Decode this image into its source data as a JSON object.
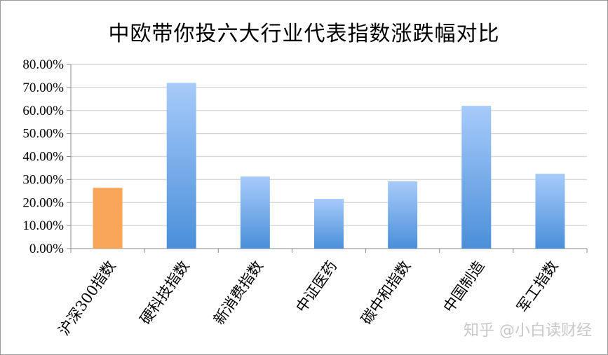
{
  "chart_data": {
    "type": "bar",
    "title": "中欧带你投六大行业代表指数涨跌幅对比",
    "categories": [
      "沪深300指数",
      "硬科技指数",
      "新消费指数",
      "中证医药",
      "碳中和指数",
      "中国制造",
      "军工指数"
    ],
    "values": [
      26.4,
      72.0,
      31.3,
      21.6,
      29.2,
      62.0,
      32.5
    ],
    "unit": "%",
    "ylim": [
      0,
      80
    ],
    "yticks": [
      "0.00%",
      "10.00%",
      "20.00%",
      "30.00%",
      "40.00%",
      "50.00%",
      "60.00%",
      "70.00%",
      "80.00%"
    ],
    "grid": true,
    "legend": "none",
    "colors": {
      "highlight": "#F9A65A",
      "bar_top": "#A7CBFA",
      "bar_bottom": "#4A8FD9"
    },
    "highlight_index": 0
  },
  "watermark": "知乎 @小白读财经"
}
